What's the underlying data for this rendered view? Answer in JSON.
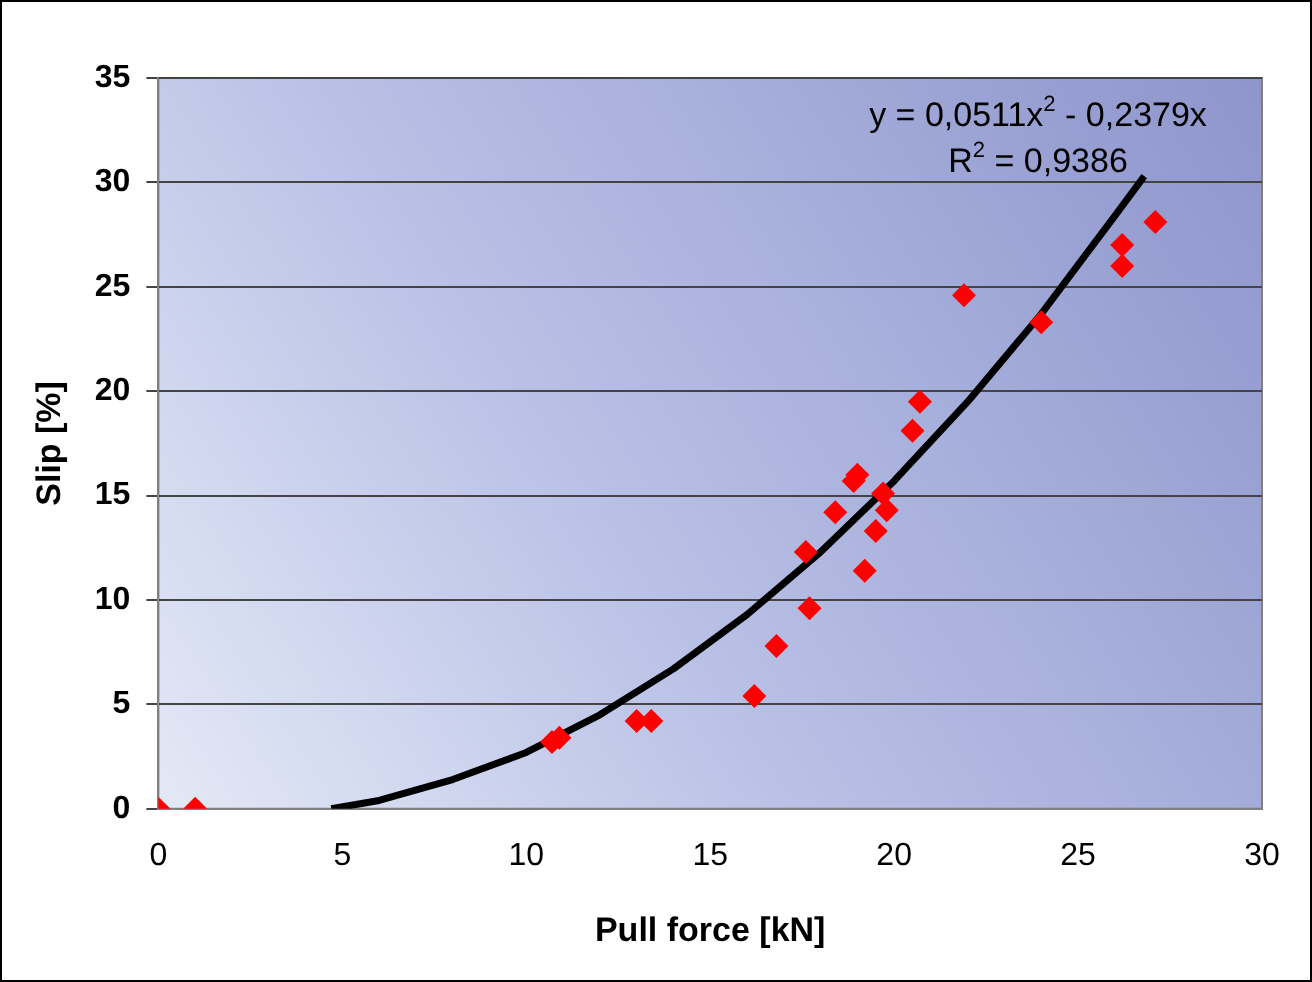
{
  "chart_data": {
    "type": "scatter",
    "xlabel": "Pull force [kN]",
    "ylabel": "Slip [%]",
    "xlim": [
      0,
      30
    ],
    "xticks": [
      0,
      5,
      10,
      15,
      20,
      25,
      30
    ],
    "ylim": [
      0,
      35
    ],
    "yticks": [
      0,
      5,
      10,
      15,
      20,
      25,
      30,
      35
    ],
    "grid": "y",
    "legend": false,
    "marker": "diamond",
    "series": [
      {
        "color": "#ff0000",
        "x": [
          0,
          1.0,
          10.7,
          10.9,
          13.0,
          13.4,
          16.2,
          16.8,
          17.7,
          17.6,
          18.4,
          18.9,
          19.0,
          19.2,
          19.5,
          19.7,
          19.8,
          20.5,
          20.7,
          21.9,
          24.0,
          26.2,
          26.2,
          27.1
        ],
        "values": [
          0,
          0,
          3.2,
          3.4,
          4.2,
          4.2,
          5.4,
          7.8,
          9.6,
          12.3,
          14.2,
          15.7,
          16.0,
          11.4,
          13.3,
          15.1,
          14.3,
          18.1,
          19.5,
          24.6,
          23.3,
          26.0,
          27.0,
          28.1
        ]
      },
      {
        "type": "line",
        "color": "#000000",
        "marker": "none",
        "x": [
          4.7,
          6,
          8,
          10,
          12,
          14,
          16,
          18,
          20,
          22,
          24,
          26,
          26.8
        ],
        "values": [
          0,
          0.4,
          1.4,
          2.7,
          4.5,
          6.7,
          9.3,
          12.3,
          15.7,
          19.5,
          23.7,
          28.4,
          30.3
        ]
      }
    ],
    "annotations": [
      "y = 0,0511x$^{2}$ - 0,2379x",
      "R$^{2}$ = 0,9386"
    ]
  }
}
